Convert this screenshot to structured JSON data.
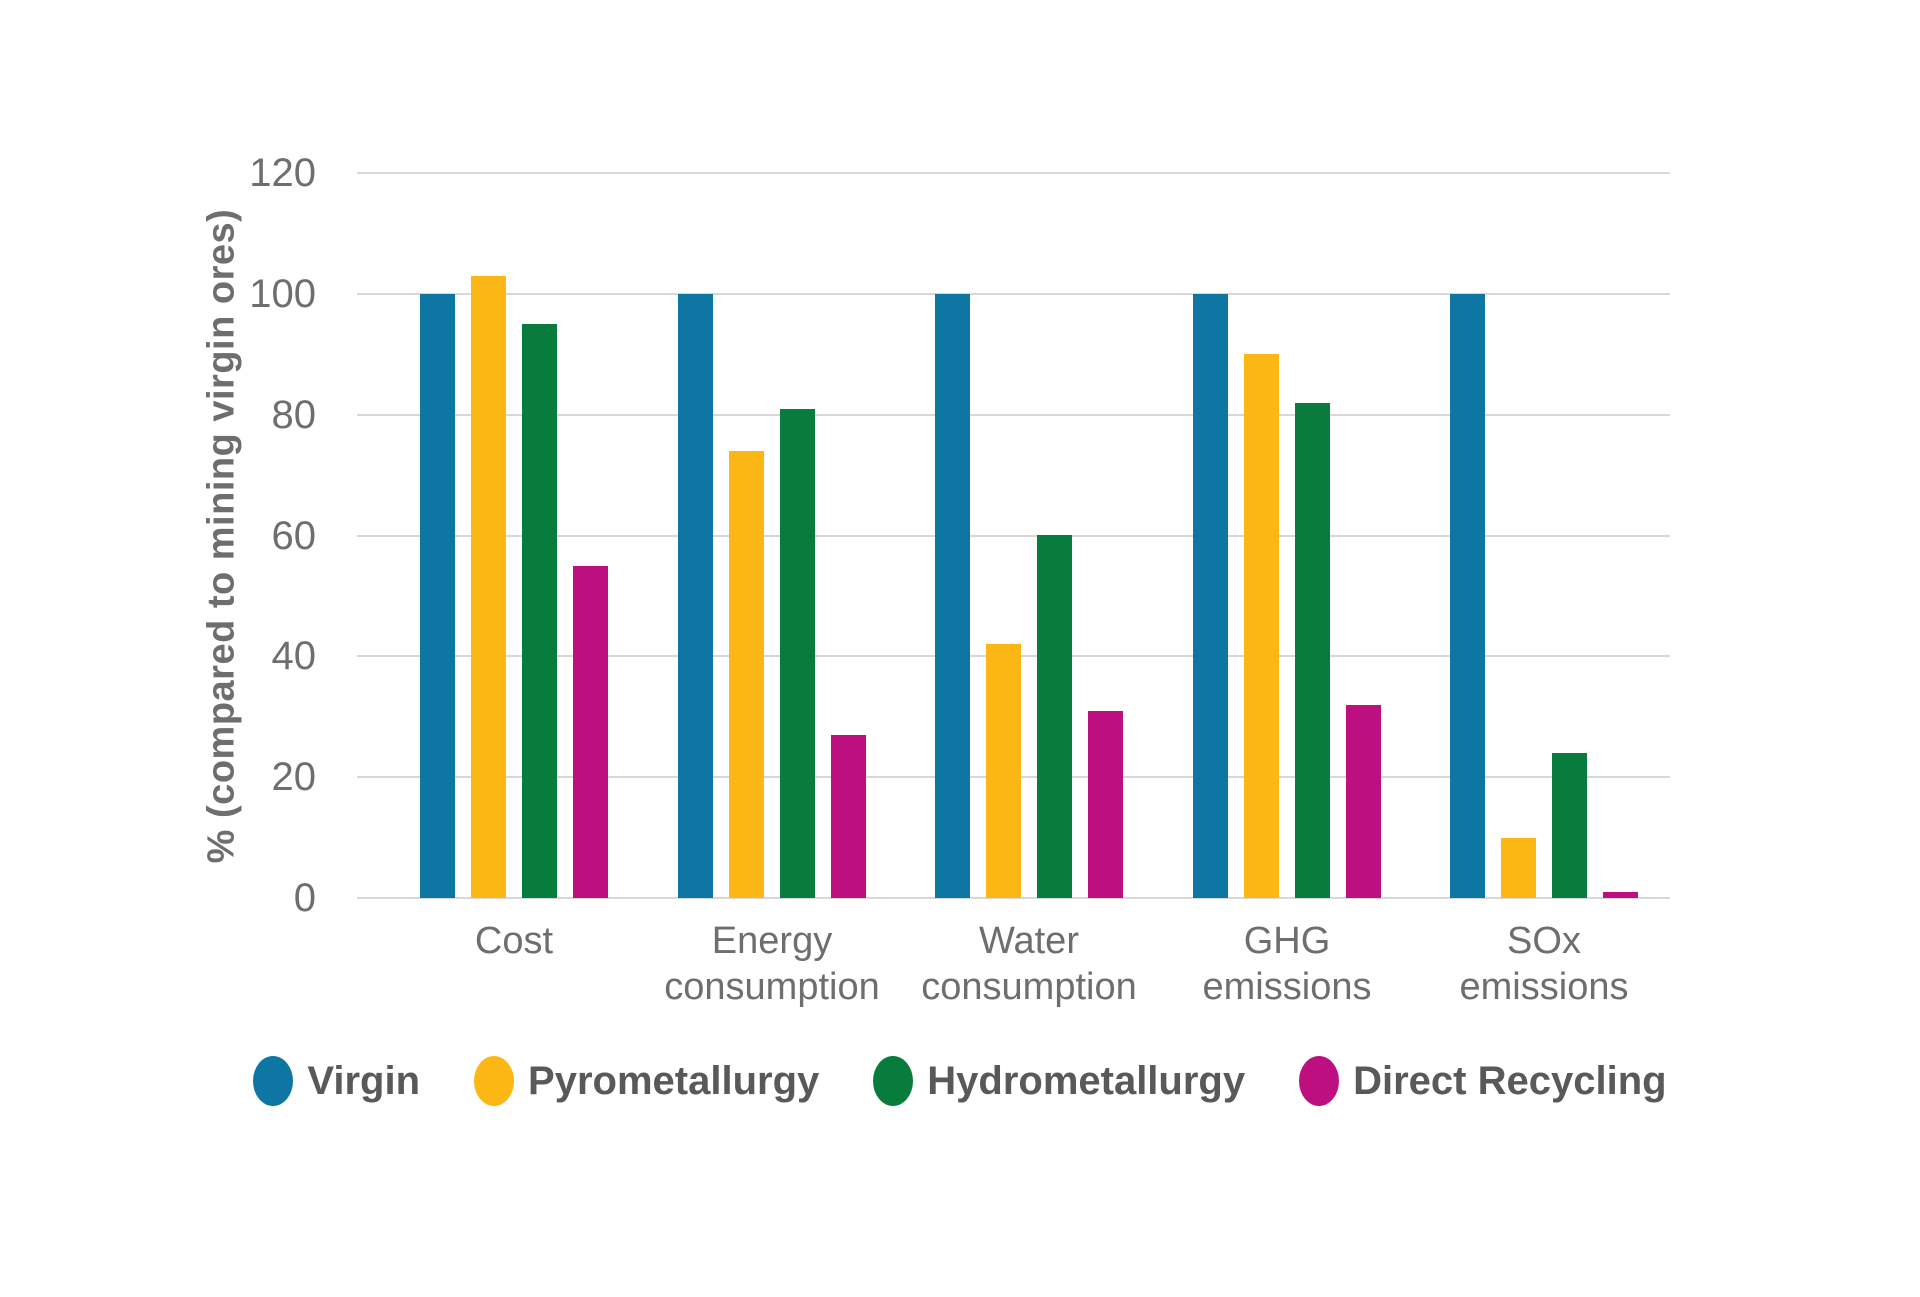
{
  "chart_data": {
    "type": "bar",
    "title": "",
    "categories": [
      "Cost",
      "Energy consumption",
      "Water consumption",
      "GHG emissions",
      "SOx emissions"
    ],
    "series": [
      {
        "name": "Virgin",
        "color": "#0d76a3",
        "values": [
          100,
          100,
          100,
          100,
          100
        ]
      },
      {
        "name": "Pyrometallurgy",
        "color": "#fdb714",
        "values": [
          103,
          74,
          42,
          90,
          10
        ]
      },
      {
        "name": "Hydrometallurgy",
        "color": "#077c3d",
        "values": [
          95,
          81,
          60,
          82,
          24
        ]
      },
      {
        "name": "Direct Recycling",
        "color": "#bd0f7f",
        "values": [
          55,
          27,
          31,
          32,
          1
        ]
      }
    ],
    "ylabel": "% (compared to mining virgin ores)",
    "yticks": [
      0,
      20,
      40,
      60,
      80,
      100,
      120
    ],
    "ylim": [
      0,
      120
    ],
    "grid": "horizontal",
    "legend_position": "bottom"
  },
  "colors": {
    "background": "#ffffff",
    "gridline": "#d8d8d8",
    "axis_text": "#6d6e70",
    "legend_text": "#58595a"
  }
}
